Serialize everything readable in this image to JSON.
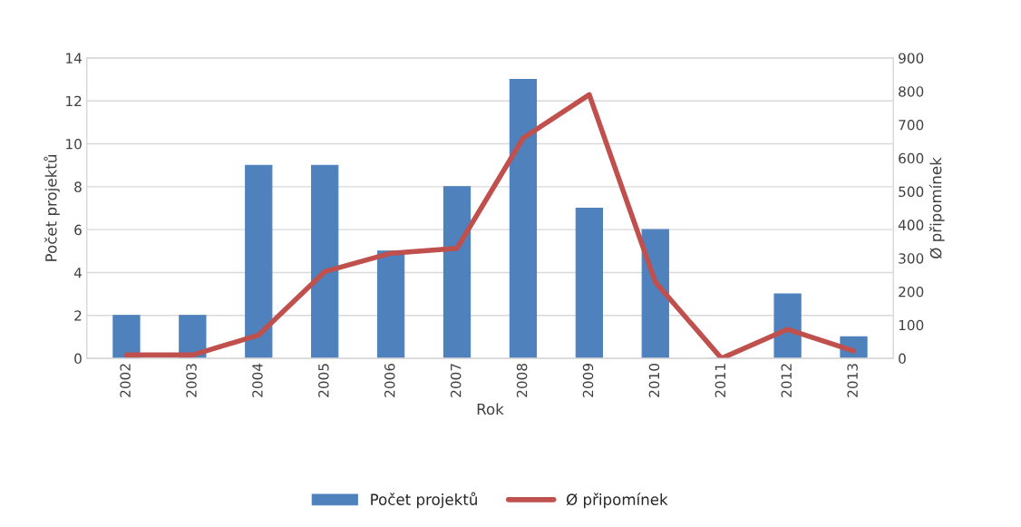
{
  "chart_data": {
    "type": "bar",
    "xlabel": "Rok",
    "ylabel": "Počet projektů",
    "y2label": "Ø připomínek",
    "categories": [
      "2002",
      "2003",
      "2004",
      "2005",
      "2006",
      "2007",
      "2008",
      "2009",
      "2010",
      "2011",
      "2012",
      "2013"
    ],
    "series": [
      {
        "name": "Počet projektů",
        "color": "#4f81bd",
        "values": [
          2,
          2,
          9,
          9,
          5,
          8,
          13,
          7,
          6,
          0,
          3,
          1
        ]
      },
      {
        "name": "Ø připomínek",
        "type": "line",
        "axis": "y2",
        "color": "#c0504d",
        "marker": "none",
        "line_style": "solid",
        "values": [
          10,
          10,
          70,
          260,
          315,
          330,
          660,
          790,
          228,
          0,
          87,
          22
        ]
      }
    ],
    "ylim": [
      0,
      14
    ],
    "yticks": [
      0,
      2,
      4,
      6,
      8,
      10,
      12,
      14
    ],
    "y2lim": [
      0,
      900
    ],
    "y2ticks": [
      0,
      100,
      200,
      300,
      400,
      500,
      600,
      700,
      800,
      900
    ],
    "grid": "y",
    "legend": "bottom"
  }
}
